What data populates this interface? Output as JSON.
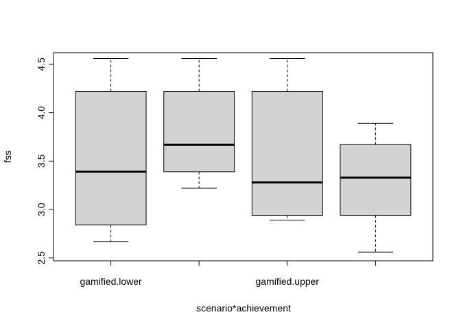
{
  "chart_data": {
    "type": "boxplot",
    "title": "",
    "xlabel": "scenario*achievement",
    "ylabel": "fss",
    "ylim": [
      2.47,
      4.62
    ],
    "yticks": [
      "2.5",
      "3.0",
      "3.5",
      "4.0",
      "4.5"
    ],
    "categories": [
      "gamified.lower",
      "",
      "gamified.upper",
      ""
    ],
    "grid": false,
    "box_fill": "#d3d3d3",
    "line_color": "#000000",
    "boxes": [
      {
        "whisker_low": 2.67,
        "q1": 2.84,
        "median": 3.39,
        "q3": 4.22,
        "whisker_high": 4.56
      },
      {
        "whisker_low": 3.22,
        "q1": 3.39,
        "median": 3.67,
        "q3": 4.22,
        "whisker_high": 4.56
      },
      {
        "whisker_low": 2.89,
        "q1": 2.94,
        "median": 3.28,
        "q3": 4.22,
        "whisker_high": 4.56
      },
      {
        "whisker_low": 2.56,
        "q1": 2.94,
        "median": 3.33,
        "q3": 3.67,
        "whisker_high": 3.89
      }
    ]
  }
}
